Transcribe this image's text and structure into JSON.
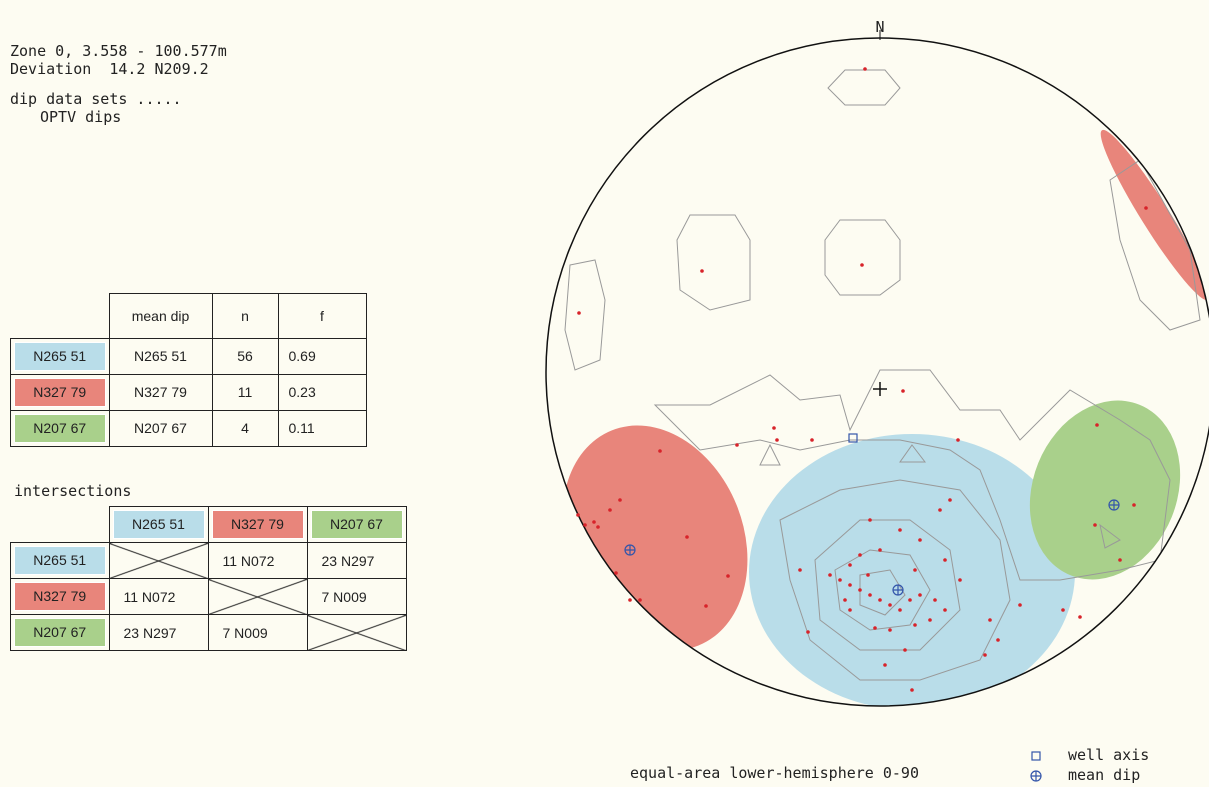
{
  "header": {
    "lines": [
      "Zone 0, 3.558 - 100.577m",
      "Deviation  14.2 N209.2",
      "dip data sets .....",
      "OPTV dips"
    ]
  },
  "sets_table": {
    "columns": [
      "mean dip",
      "n",
      "f"
    ],
    "rows": [
      {
        "label": "N265 51",
        "color": "#b9dde9",
        "cells": [
          "N265 51",
          56,
          0.69
        ]
      },
      {
        "label": "N327 79",
        "color": "#e8857b",
        "cells": [
          "N327 79",
          11,
          0.23
        ]
      },
      {
        "label": "N207 67",
        "color": "#a9d08b",
        "cells": [
          "N207 67",
          4,
          0.11
        ]
      }
    ]
  },
  "intersections": {
    "title": "intersections",
    "columns": [
      "N265 51",
      "N327 79",
      "N207 67"
    ],
    "rows": [
      {
        "label": "N265 51",
        "cells": [
          null,
          "11 N072",
          "23 N297"
        ]
      },
      {
        "label": "N327 79",
        "cells": [
          "11 N072",
          null,
          "7 N009"
        ]
      },
      {
        "label": "N207 67",
        "cells": [
          "23 N297",
          "7 N009",
          null
        ]
      }
    ]
  },
  "stereonet": {
    "north": "N",
    "projection": "equal-area   lower-hemisphere   0-90",
    "legend": [
      "well axis",
      "mean dip"
    ]
  }
}
